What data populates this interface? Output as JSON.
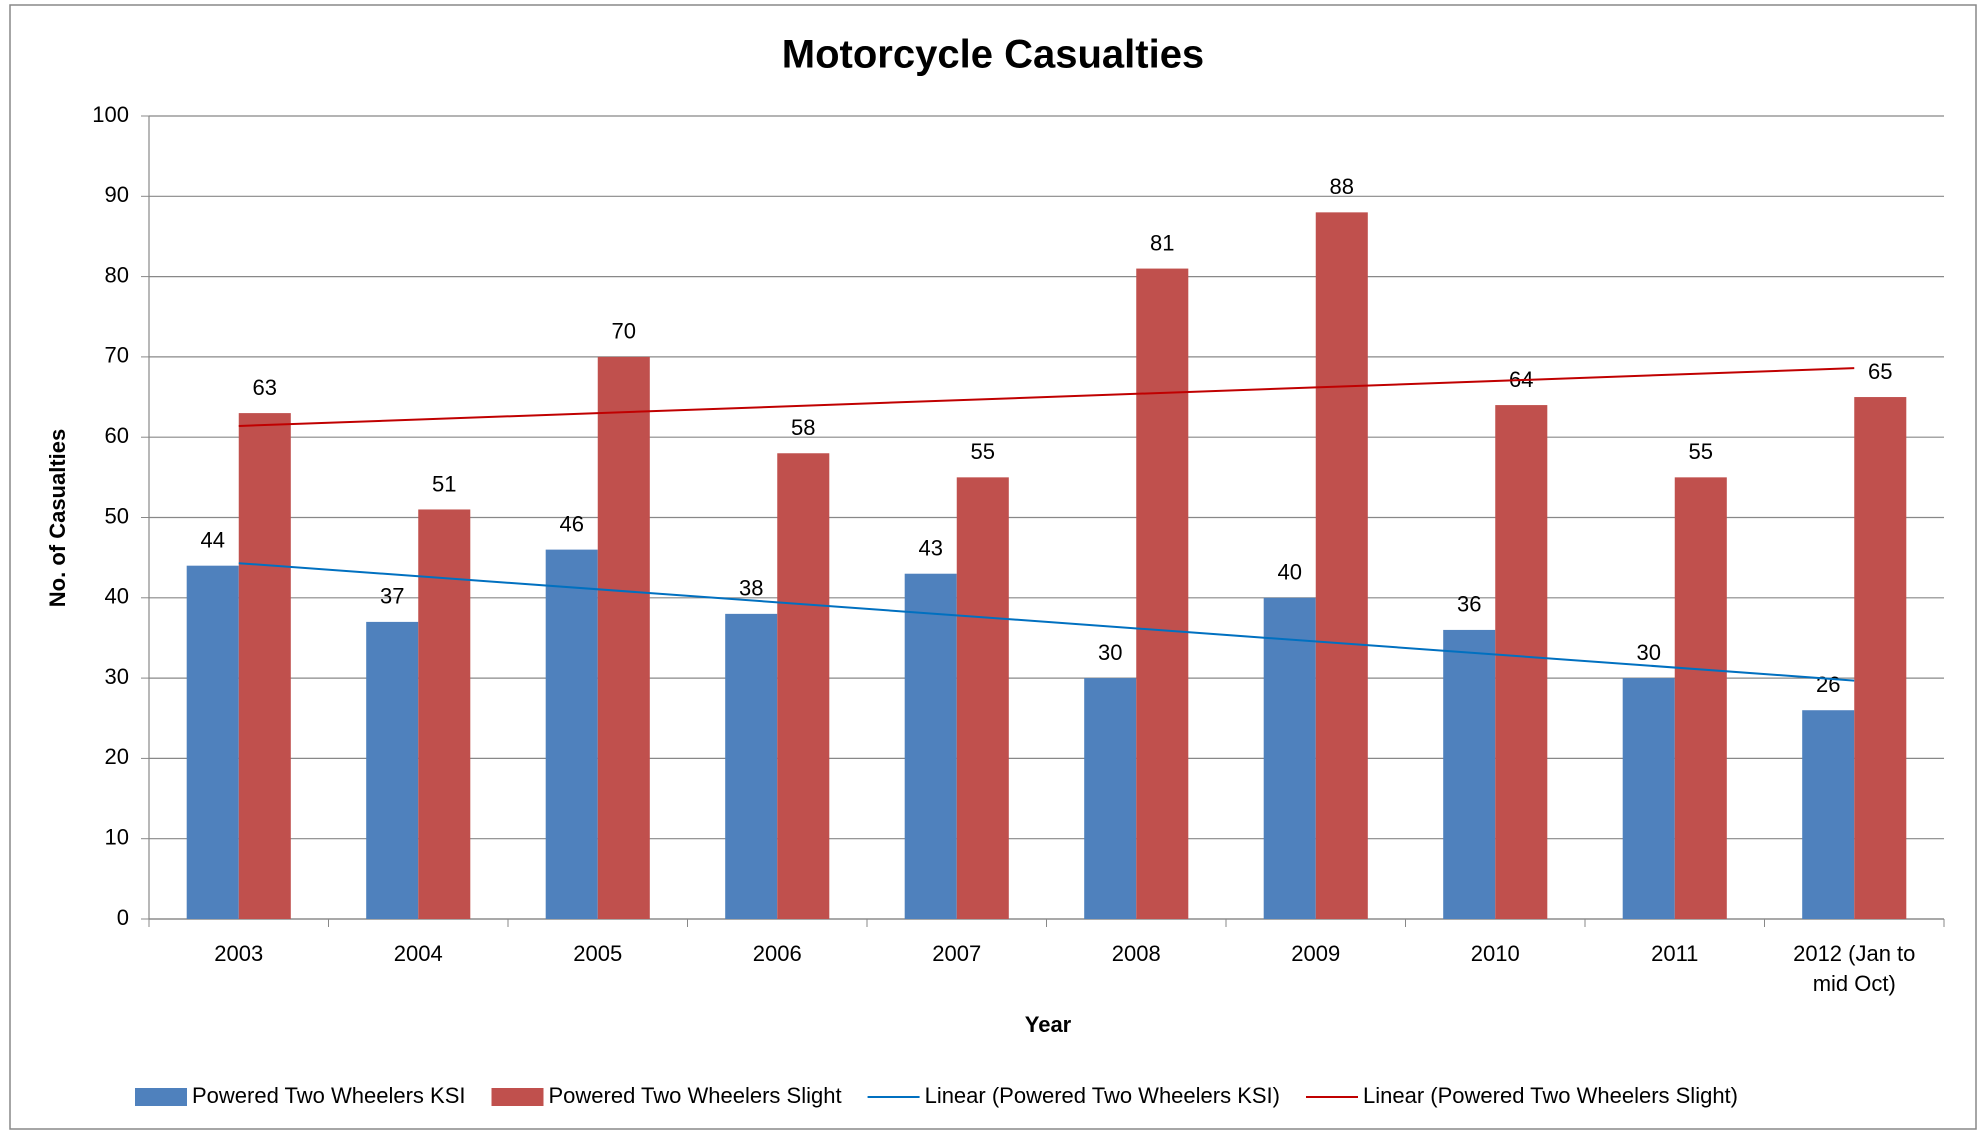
{
  "chart_data": {
    "type": "bar",
    "title": "Motorcycle Casualties",
    "x_label": "Year",
    "y_label": "No. of Casualties",
    "categories": [
      "2003",
      "2004",
      "2005",
      "2006",
      "2007",
      "2008",
      "2009",
      "2010",
      "2011",
      "2012 (Jan to mid Oct)"
    ],
    "series": [
      {
        "name": "Powered Two Wheelers KSI",
        "color": "#4f81bd",
        "values": [
          44,
          37,
          46,
          38,
          43,
          30,
          40,
          36,
          30,
          26
        ]
      },
      {
        "name": "Powered Two Wheelers Slight",
        "color": "#c0504d",
        "values": [
          63,
          51,
          70,
          58,
          55,
          81,
          88,
          64,
          55,
          65
        ]
      }
    ],
    "trendlines": [
      {
        "name": "Linear (Powered Two Wheelers KSI)",
        "color": "#0070c0"
      },
      {
        "name": "Linear (Powered Two Wheelers Slight)",
        "color": "#c00000"
      }
    ],
    "ylim": [
      0,
      100
    ],
    "yticks": [
      0,
      10,
      20,
      30,
      40,
      50,
      60,
      70,
      80,
      90,
      100
    ],
    "grid": true,
    "legend": "bottom"
  }
}
